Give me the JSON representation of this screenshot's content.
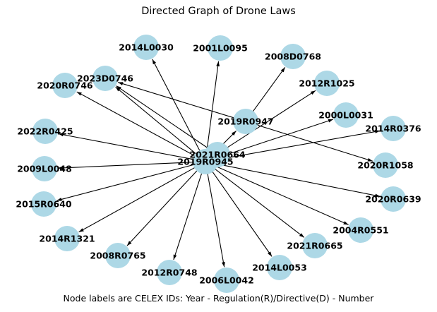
{
  "title": "Directed Graph of Drone Laws",
  "caption": "Node labels are CELEX IDs: Year - Regulation(R)/Directive(D) - Number",
  "colors": {
    "node": "#add8e6",
    "edge": "#000000",
    "label": "#000000"
  },
  "nodes": [
    {
      "id": "2019R0945"
    },
    {
      "id": "2021R0664"
    },
    {
      "id": "2019R0947"
    },
    {
      "id": "2014L0030"
    },
    {
      "id": "2001L0095"
    },
    {
      "id": "2008D0768"
    },
    {
      "id": "2012R1025"
    },
    {
      "id": "2000L0031"
    },
    {
      "id": "2014R0376"
    },
    {
      "id": "2020R1058"
    },
    {
      "id": "2020R0639"
    },
    {
      "id": "2004R0551"
    },
    {
      "id": "2021R0665"
    },
    {
      "id": "2014L0053"
    },
    {
      "id": "2006L0042"
    },
    {
      "id": "2012R0748"
    },
    {
      "id": "2008R0765"
    },
    {
      "id": "2014R1321"
    },
    {
      "id": "2015R0640"
    },
    {
      "id": "2009L0048"
    },
    {
      "id": "2022R0425"
    },
    {
      "id": "2020R0746"
    },
    {
      "id": "2023D0746"
    }
  ],
  "edges": [
    [
      "2019R0945",
      "2014L0030"
    ],
    [
      "2019R0945",
      "2001L0095"
    ],
    [
      "2019R0945",
      "2023D0746"
    ],
    [
      "2019R0945",
      "2020R0746"
    ],
    [
      "2019R0945",
      "2022R0425"
    ],
    [
      "2019R0945",
      "2009L0048"
    ],
    [
      "2019R0945",
      "2015R0640"
    ],
    [
      "2019R0945",
      "2014R1321"
    ],
    [
      "2019R0945",
      "2008R0765"
    ],
    [
      "2019R0945",
      "2012R0748"
    ],
    [
      "2019R0945",
      "2006L0042"
    ],
    [
      "2019R0945",
      "2014L0053"
    ],
    [
      "2019R0945",
      "2021R0665"
    ],
    [
      "2019R0945",
      "2004R0551"
    ],
    [
      "2019R0945",
      "2020R0639"
    ],
    [
      "2019R0945",
      "2014R0376"
    ],
    [
      "2019R0945",
      "2000L0031"
    ],
    [
      "2019R0945",
      "2012R1025"
    ],
    [
      "2019R0945",
      "2019R0947"
    ],
    [
      "2021R0664",
      "2023D0746"
    ],
    [
      "2019R0947",
      "2008D0768"
    ],
    [
      "2019R0947",
      "2023D0746"
    ],
    [
      "2019R0947",
      "2020R1058"
    ]
  ]
}
